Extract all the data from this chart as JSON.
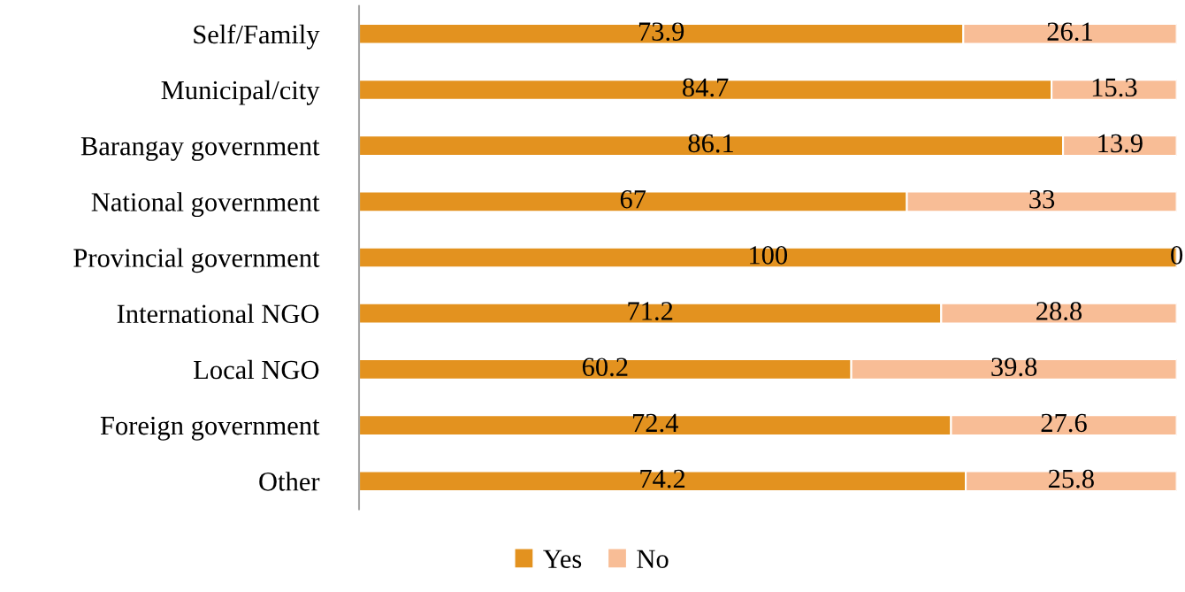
{
  "chart_data": {
    "type": "bar",
    "orientation": "horizontal",
    "stacked": true,
    "categories": [
      "Self/Family",
      "Municipal/city",
      "Barangay government",
      "National government",
      "Provincial government",
      "International NGO",
      "Local NGO",
      "Foreign government",
      "Other"
    ],
    "series": [
      {
        "name": "Yes",
        "color": "#e3921f",
        "values": [
          73.9,
          84.7,
          86.1,
          67,
          100,
          71.2,
          60.2,
          72.4,
          74.2
        ]
      },
      {
        "name": "No",
        "color": "#f8bd96",
        "values": [
          26.1,
          15.3,
          13.9,
          33,
          0,
          28.8,
          39.8,
          27.6,
          25.8
        ]
      }
    ],
    "xlim": [
      0,
      100
    ],
    "tick_labels": "y",
    "data_labels": true,
    "legend": "bottom",
    "grid": false
  }
}
